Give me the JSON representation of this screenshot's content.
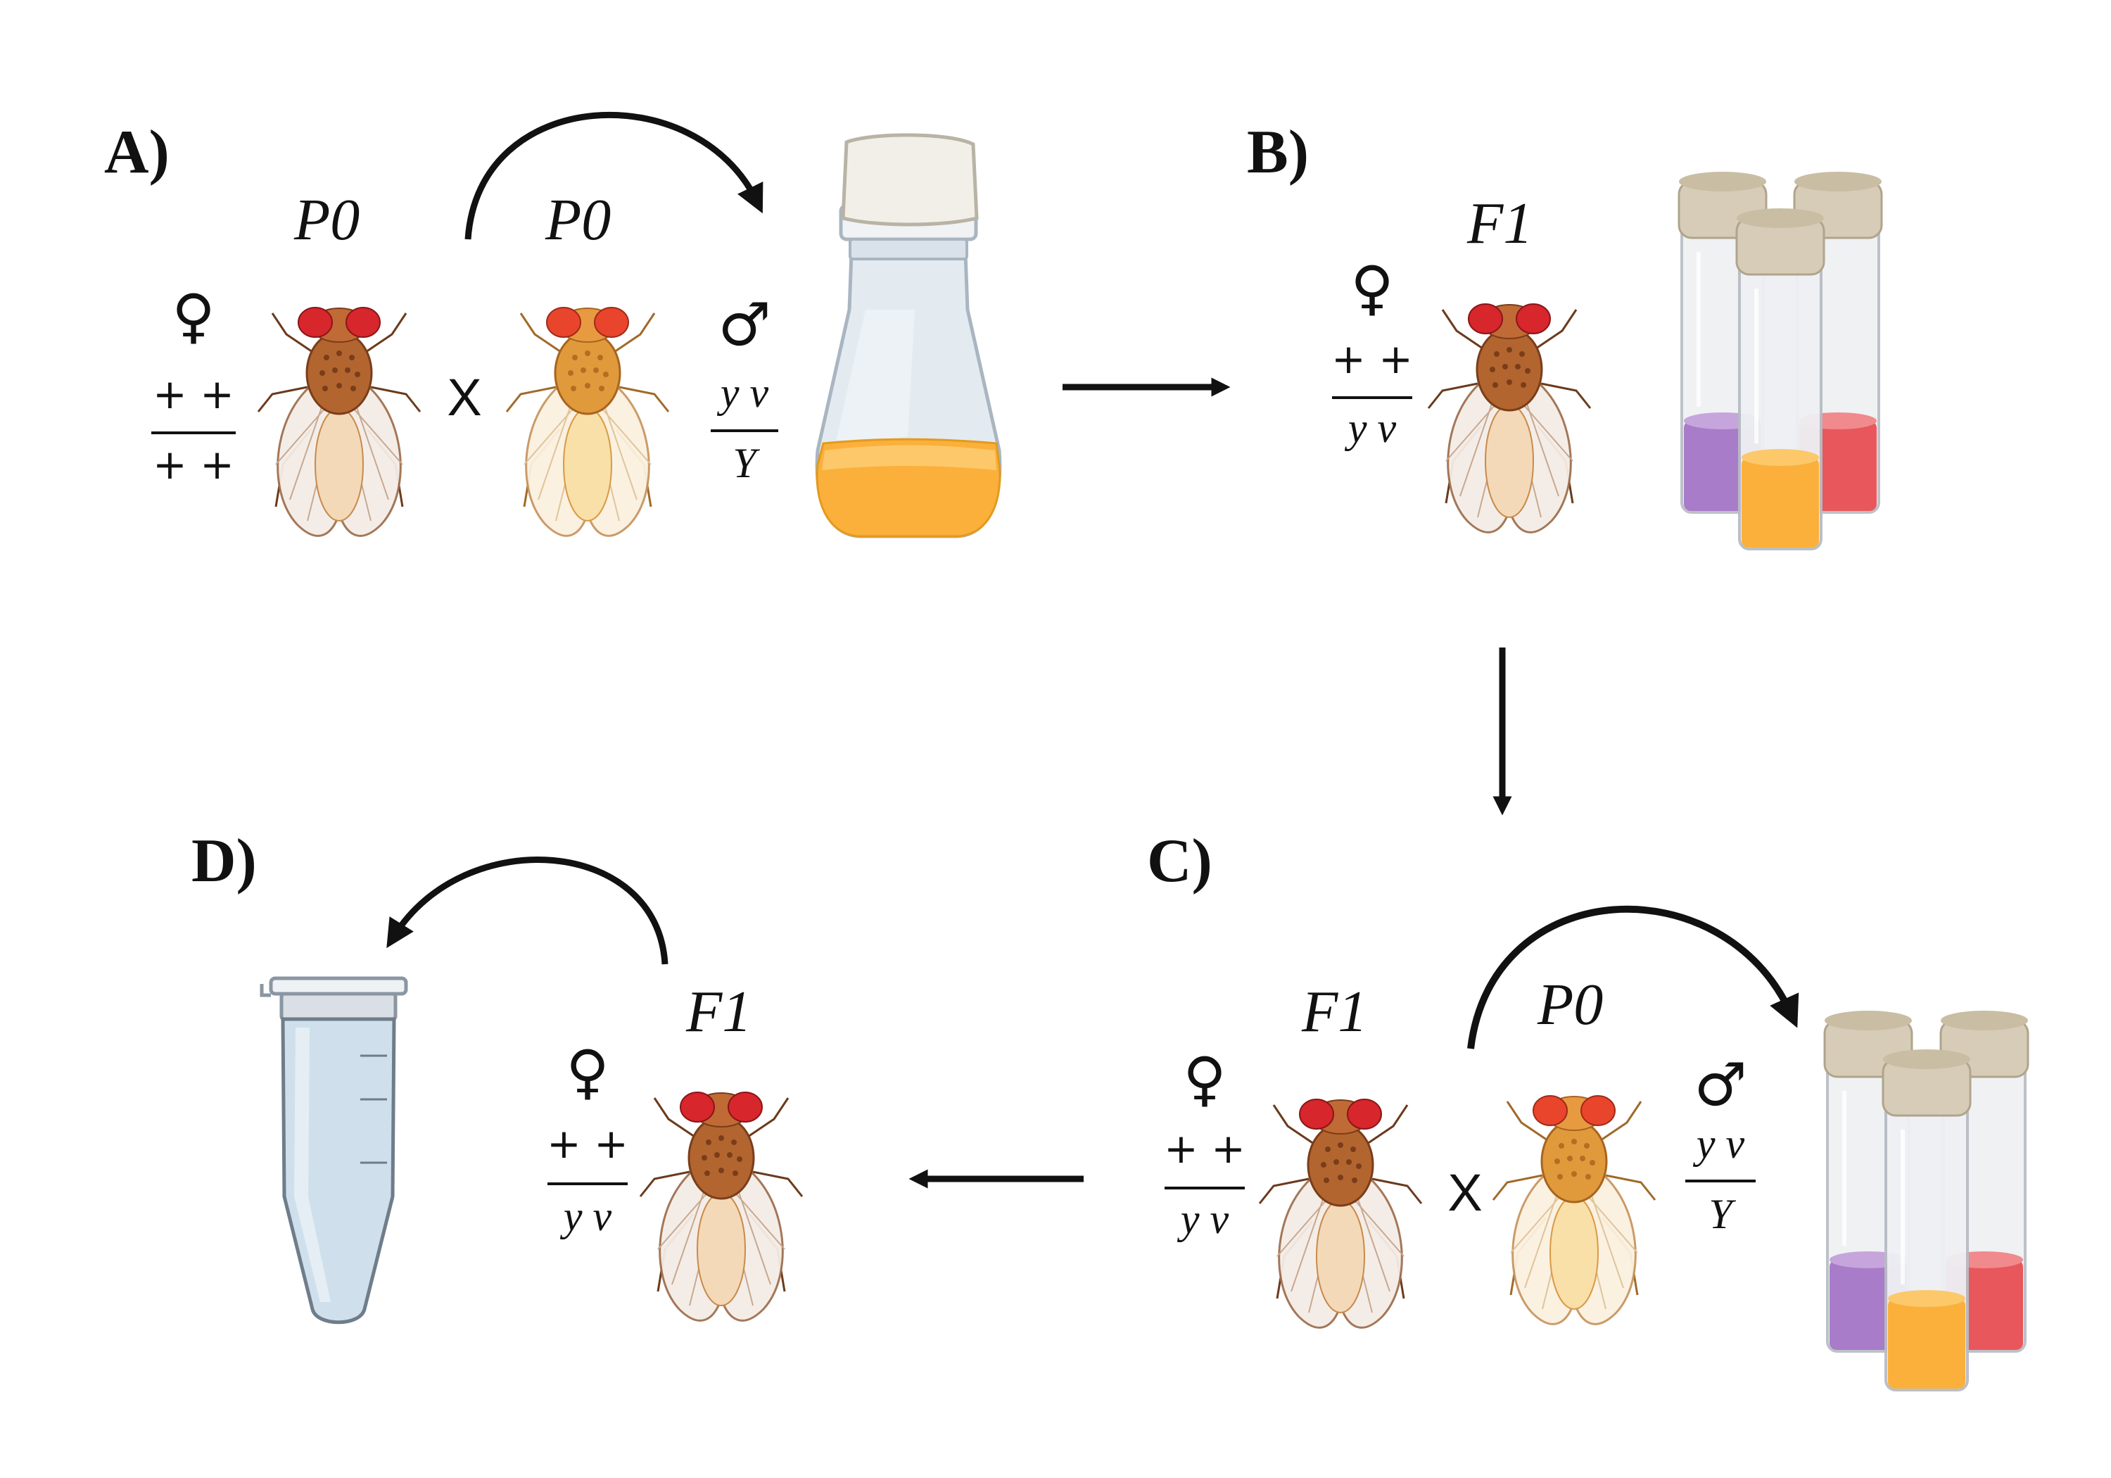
{
  "panels": {
    "a": "A)",
    "b": "B)",
    "c": "C)",
    "d": "D)"
  },
  "cross_a": {
    "female_gen": "P0",
    "male_gen": "P0",
    "female_symbol": "♀",
    "male_symbol": "♂",
    "cross_symbol": "X",
    "female_top": "+ +",
    "female_bottom": "+ +",
    "male_top": "y v",
    "male_bottom": "Y"
  },
  "stage_b": {
    "gen": "F1",
    "female_symbol": "♀",
    "top": "+ +",
    "bottom": "y v"
  },
  "cross_c": {
    "female_gen": "F1",
    "male_gen": "P0",
    "female_symbol": "♀",
    "male_symbol": "♂",
    "cross_symbol": "X",
    "female_top": "+ +",
    "female_bottom": "y v",
    "male_top": "y v",
    "male_bottom": "Y"
  },
  "stage_d": {
    "gen": "F1",
    "female_symbol": "♀",
    "top": "+ +",
    "bottom": "y v"
  },
  "colors": {
    "orange_food": "#fbb03b",
    "purple_food": "#a87cc8",
    "red_food": "#e8575c",
    "fly_red_eye": "#d7262c",
    "fly_brown": "#b3652f",
    "fly_yellow": "#e09a3c",
    "vial_cap": "#d6ccb8",
    "tube_blue": "#cfe0ec"
  }
}
